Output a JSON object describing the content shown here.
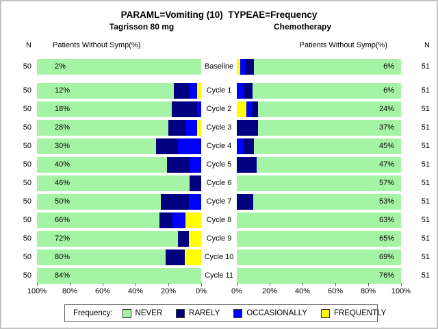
{
  "chart_data": {
    "type": "bar",
    "subtype": "butterfly-100pct-stacked-horizontal",
    "title": "PARAML=Vomiting (10)  TYPEAE=Frequency",
    "left_panel_title": "Tagrisson 80 mg",
    "right_panel_title": "Chemotherapy",
    "headers": {
      "n_left": "N",
      "left": "Patients Without Symp(%)",
      "right": "Patients Without Symp(%)",
      "n_right": "N"
    },
    "colors": {
      "never": "#A5F3A5",
      "rarely": "#000080",
      "occasionally": "#0000FF",
      "frequently": "#FFFF00"
    },
    "axes": {
      "left_ticks": [
        "100%",
        "80%",
        "60%",
        "40%",
        "20%",
        "0%"
      ],
      "right_ticks": [
        "0%",
        "20%",
        "40%",
        "60%",
        "80%",
        "100%"
      ],
      "tick_step_percent": 20
    },
    "legend": {
      "title": "Frequency:",
      "entries": [
        {
          "label": "NEVER",
          "key": "never"
        },
        {
          "label": "RARELY",
          "key": "rarely"
        },
        {
          "label": "OCCASIONALLY",
          "key": "occasionally"
        },
        {
          "label": "FREQUENTLY",
          "key": "frequently"
        }
      ]
    },
    "rows": [
      {
        "label": "Baseline",
        "left": {
          "n": "50",
          "value": "2%",
          "rarely": 0,
          "occasionally": 0,
          "frequently": 0
        },
        "right": {
          "n": "51",
          "value": "6%",
          "rarely": 5.5,
          "occasionally": 3,
          "frequently": 2
        }
      },
      {
        "label": "Cycle 1",
        "left": {
          "n": "50",
          "value": "12%",
          "rarely": 9.5,
          "occasionally": 4.5,
          "frequently": 2.5
        },
        "right": {
          "n": "51",
          "value": "6%",
          "rarely": 5.5,
          "occasionally": 4,
          "frequently": 0
        }
      },
      {
        "label": "Cycle 2",
        "left": {
          "n": "50",
          "value": "18%",
          "rarely": 15.5,
          "occasionally": 2.5,
          "frequently": 0
        },
        "right": {
          "n": "51",
          "value": "24%",
          "rarely": 4,
          "occasionally": 3,
          "frequently": 6
        }
      },
      {
        "label": "Cycle 3",
        "left": {
          "n": "50",
          "value": "28%",
          "rarely": 11,
          "occasionally": 6.5,
          "frequently": 2.5
        },
        "right": {
          "n": "51",
          "value": "37%",
          "rarely": 13,
          "occasionally": 0,
          "frequently": 0
        }
      },
      {
        "label": "Cycle 4",
        "left": {
          "n": "50",
          "value": "30%",
          "rarely": 13.5,
          "occasionally": 14,
          "frequently": 0
        },
        "right": {
          "n": "51",
          "value": "45%",
          "rarely": 6.5,
          "occasionally": 4,
          "frequently": 0
        }
      },
      {
        "label": "Cycle 5",
        "left": {
          "n": "50",
          "value": "40%",
          "rarely": 14,
          "occasionally": 7,
          "frequently": 0
        },
        "right": {
          "n": "51",
          "value": "47%",
          "rarely": 12,
          "occasionally": 0,
          "frequently": 0
        }
      },
      {
        "label": "Cycle 6",
        "left": {
          "n": "50",
          "value": "46%",
          "rarely": 7,
          "occasionally": 0,
          "frequently": 0
        },
        "right": {
          "n": "51",
          "value": "57%",
          "rarely": 0,
          "occasionally": 0,
          "frequently": 0
        }
      },
      {
        "label": "Cycle 7",
        "left": {
          "n": "50",
          "value": "50%",
          "rarely": 17,
          "occasionally": 7.5,
          "frequently": 0
        },
        "right": {
          "n": "51",
          "value": "53%",
          "rarely": 10,
          "occasionally": 0,
          "frequently": 0
        }
      },
      {
        "label": "Cycle 8",
        "left": {
          "n": "50",
          "value": "66%",
          "rarely": 8,
          "occasionally": 8,
          "frequently": 9.5
        },
        "right": {
          "n": "51",
          "value": "63%",
          "rarely": 0,
          "occasionally": 0,
          "frequently": 0
        }
      },
      {
        "label": "Cycle 9",
        "left": {
          "n": "50",
          "value": "72%",
          "rarely": 6.5,
          "occasionally": 0,
          "frequently": 7.5
        },
        "right": {
          "n": "51",
          "value": "65%",
          "rarely": 0,
          "occasionally": 0,
          "frequently": 0
        }
      },
      {
        "label": "Cycle 10",
        "left": {
          "n": "50",
          "value": "80%",
          "rarely": 11.5,
          "occasionally": 0,
          "frequently": 10
        },
        "right": {
          "n": "51",
          "value": "69%",
          "rarely": 0,
          "occasionally": 0,
          "frequently": 0
        }
      },
      {
        "label": "Cycle 11",
        "left": {
          "n": "50",
          "value": "84%",
          "rarely": 0,
          "occasionally": 0,
          "frequently": 0
        },
        "right": {
          "n": "51",
          "value": "76%",
          "rarely": 0,
          "occasionally": 0,
          "frequently": 0
        }
      }
    ]
  }
}
